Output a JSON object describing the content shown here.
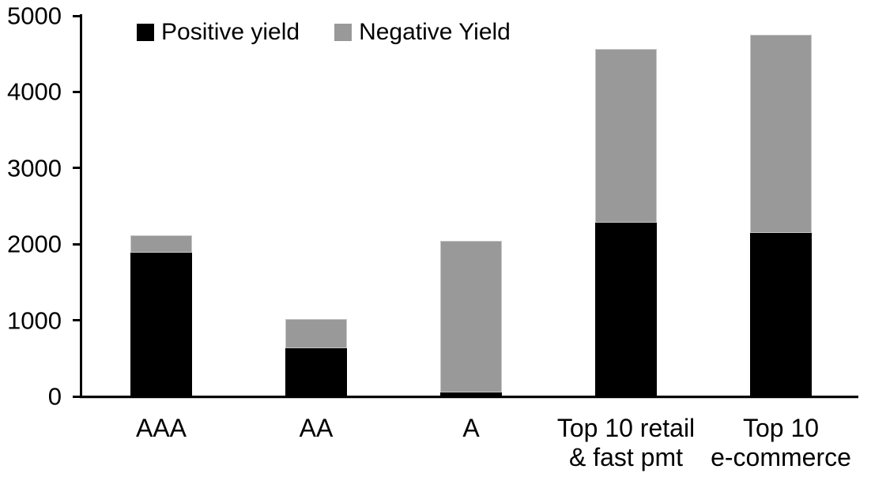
{
  "chart_data": {
    "type": "bar",
    "stacked": true,
    "title": "",
    "xlabel": "",
    "ylabel": "",
    "categories": [
      "AAA",
      "AA",
      "A",
      "Top 10 retail\n& fast pmt",
      "Top 10\ne-commerce"
    ],
    "series": [
      {
        "name": "Positive yield",
        "color": "#000000",
        "values": [
          1880,
          620,
          40,
          2270,
          2140
        ]
      },
      {
        "name": "Negative Yield",
        "color": "#999999",
        "values": [
          230,
          380,
          1990,
          2280,
          2600
        ]
      }
    ],
    "totals": [
      2110,
      1000,
      2030,
      4550,
      4740
    ],
    "ylim": [
      0,
      5000
    ],
    "yticks": [
      0,
      1000,
      2000,
      3000,
      4000,
      5000
    ],
    "grid": false,
    "legend_position": "top-left-inside"
  },
  "colors": {
    "axis": "#000000",
    "background": "#ffffff",
    "positive": "#000000",
    "negative": "#999999",
    "bar_border": "#c6c6c6"
  }
}
